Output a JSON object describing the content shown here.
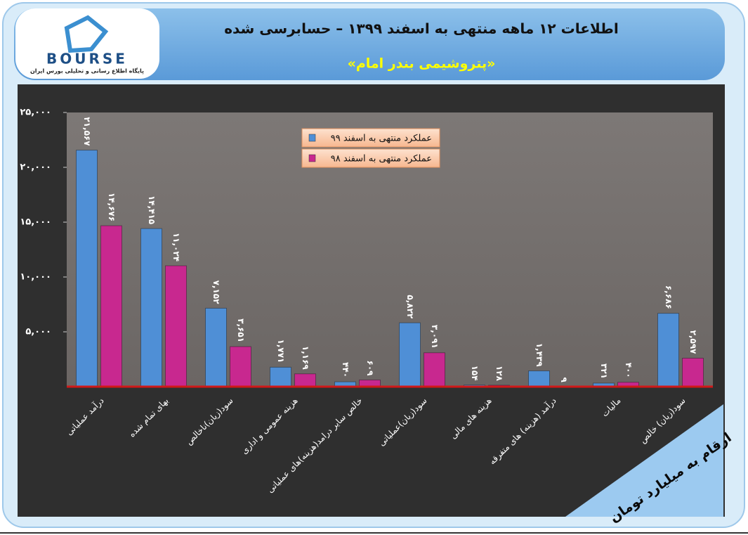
{
  "header": {
    "title": "اطلاعات ۱۲ ماهه منتهی به اسفند ۱۳۹۹ – حسابرسی شده",
    "subtitle": "«پتروشیمی بندر امام»",
    "logo_text": "BOURSE",
    "logo_caption": "پایگاه اطلاع رسانی و تحلیلی بورس ایران"
  },
  "chart_data": {
    "type": "bar",
    "unit_note": "ارقام به میلیارد تومان",
    "categories": [
      "درآمد عملیاتی",
      "بهای تمام شده",
      "سود(زیان)ناخالص",
      "هزینه عمومی و اداری",
      "خالص سایر درامد(هزینه)های عملیاتی",
      "سود(زیان)عملیاتی",
      "هزینه های مالی",
      "درآمد (هزینه) های متفرقه",
      "مالیات",
      "سود(زیان) خالص"
    ],
    "series": [
      {
        "name": "عملکرد منتهی به اسفند ۹۹",
        "color": "#4f8fd6",
        "values": [
          21567,
          14415,
          7152,
          1771,
          440,
          5822,
          154,
          1439,
          321,
          6686
        ],
        "value_labels": [
          "۲۱,۵۶۷",
          "۱۴,۴۱۵",
          "۷,۱۵۲",
          "۱,۷۷۱",
          "۴۴۰",
          "۵,۸۲۲",
          "۱۵۴",
          "۱,۴۳۹",
          "۳۲۱",
          "۶,۶۸۶"
        ]
      },
      {
        "name": "عملکرد منتهی به اسفند ۹۸",
        "color": "#c8288f",
        "values": [
          14676,
          11024,
          3651,
          1169,
          609,
          3091,
          128,
          9,
          400,
          2597
        ],
        "value_labels": [
          "۱۴,۶۷۶",
          "۱۱,۰۲۴",
          "۳,۶۵۱",
          "۱,۱۶۹",
          "۶۰۹",
          "۳,۰۹۱",
          "۱۲۸",
          "۹",
          "۴۰۰",
          "۲,۵۹۷"
        ]
      }
    ],
    "ylim": [
      0,
      25000
    ],
    "yticks": [
      {
        "value": 5000,
        "label": "۵,۰۰۰"
      },
      {
        "value": 10000,
        "label": "۱۰,۰۰۰"
      },
      {
        "value": 15000,
        "label": "۱۵,۰۰۰"
      },
      {
        "value": 20000,
        "label": "۲۰,۰۰۰"
      },
      {
        "value": 25000,
        "label": "۲۵,۰۰۰"
      }
    ],
    "grid": false
  }
}
